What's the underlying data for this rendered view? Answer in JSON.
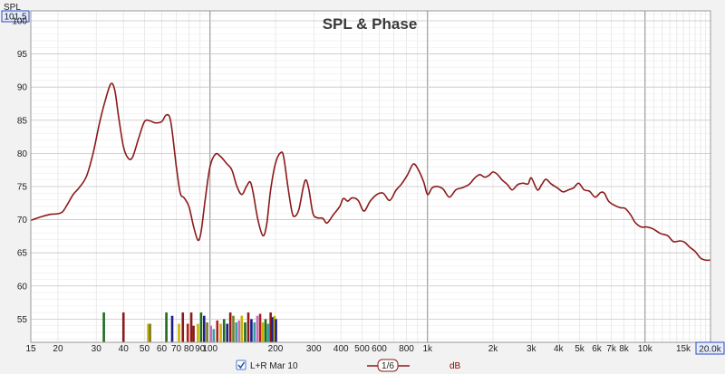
{
  "chart_data": {
    "type": "line",
    "title": "SPL & Phase",
    "ylabel": "SPL",
    "xscale": "log",
    "xlim": [
      15,
      20000
    ],
    "ylim": [
      51.5,
      101.5
    ],
    "y_max_label": "101.5",
    "x_max_label": "20.0k",
    "yticks": [
      "55",
      "60",
      "65",
      "70",
      "75",
      "80",
      "85",
      "90",
      "95",
      "100"
    ],
    "xticks": [
      {
        "v": 15,
        "label": "15"
      },
      {
        "v": 20,
        "label": "20"
      },
      {
        "v": 30,
        "label": "30"
      },
      {
        "v": 40,
        "label": "40"
      },
      {
        "v": 50,
        "label": "50"
      },
      {
        "v": 60,
        "label": "60"
      },
      {
        "v": 70,
        "label": "70"
      },
      {
        "v": 80,
        "label": "80"
      },
      {
        "v": 90,
        "label": "90"
      },
      {
        "v": 100,
        "label": "100"
      },
      {
        "v": 200,
        "label": "200"
      },
      {
        "v": 300,
        "label": "300"
      },
      {
        "v": 400,
        "label": "400"
      },
      {
        "v": 500,
        "label": "500"
      },
      {
        "v": 600,
        "label": "600"
      },
      {
        "v": 800,
        "label": "800"
      },
      {
        "v": 1000,
        "label": "1k"
      },
      {
        "v": 2000,
        "label": "2k"
      },
      {
        "v": 3000,
        "label": "3k"
      },
      {
        "v": 4000,
        "label": "4k"
      },
      {
        "v": 5000,
        "label": "5k"
      },
      {
        "v": 6000,
        "label": "6k"
      },
      {
        "v": 7000,
        "label": "7k"
      },
      {
        "v": 8000,
        "label": "8k"
      },
      {
        "v": 10000,
        "label": "10k"
      },
      {
        "v": 15000,
        "label": "15k"
      }
    ],
    "grid": true,
    "series": [
      {
        "name": "L+R Mar 10",
        "color": "#8b1a1a",
        "points": [
          [
            15,
            69.9
          ],
          [
            17,
            70.5
          ],
          [
            18.5,
            70.8
          ],
          [
            20,
            70.9
          ],
          [
            21,
            71.2
          ],
          [
            22,
            72.2
          ],
          [
            23.5,
            73.8
          ],
          [
            25,
            74.8
          ],
          [
            27,
            76.5
          ],
          [
            29,
            80.0
          ],
          [
            31,
            84.5
          ],
          [
            33,
            88.0
          ],
          [
            35,
            90.5
          ],
          [
            36.5,
            89.5
          ],
          [
            38,
            85.5
          ],
          [
            40,
            81.0
          ],
          [
            42,
            79.3
          ],
          [
            44,
            79.4
          ],
          [
            47,
            82.3
          ],
          [
            50,
            84.8
          ],
          [
            53,
            84.9
          ],
          [
            56,
            84.6
          ],
          [
            60,
            84.8
          ],
          [
            63,
            85.8
          ],
          [
            66,
            84.8
          ],
          [
            70,
            78.0
          ],
          [
            73,
            74.0
          ],
          [
            76,
            73.3
          ],
          [
            80,
            72.0
          ],
          [
            84,
            69.0
          ],
          [
            88,
            66.9
          ],
          [
            91,
            68.2
          ],
          [
            95,
            73.0
          ],
          [
            100,
            78.0
          ],
          [
            106,
            79.9
          ],
          [
            112,
            79.5
          ],
          [
            119,
            78.5
          ],
          [
            126,
            77.5
          ],
          [
            133,
            75.0
          ],
          [
            140,
            73.8
          ],
          [
            147,
            75.0
          ],
          [
            153,
            75.7
          ],
          [
            158,
            74.0
          ],
          [
            166,
            70.0
          ],
          [
            175,
            67.6
          ],
          [
            182,
            69.2
          ],
          [
            190,
            74.5
          ],
          [
            200,
            78.5
          ],
          [
            211,
            80.1
          ],
          [
            218,
            79.5
          ],
          [
            228,
            75.0
          ],
          [
            238,
            71.2
          ],
          [
            245,
            70.5
          ],
          [
            256,
            71.5
          ],
          [
            268,
            74.8
          ],
          [
            276,
            76.0
          ],
          [
            285,
            74.5
          ],
          [
            297,
            71.0
          ],
          [
            310,
            70.3
          ],
          [
            330,
            70.2
          ],
          [
            345,
            69.5
          ],
          [
            370,
            70.8
          ],
          [
            395,
            72.0
          ],
          [
            410,
            73.2
          ],
          [
            430,
            72.8
          ],
          [
            450,
            73.3
          ],
          [
            480,
            72.9
          ],
          [
            510,
            71.3
          ],
          [
            545,
            72.8
          ],
          [
            585,
            73.8
          ],
          [
            625,
            74.0
          ],
          [
            670,
            72.9
          ],
          [
            715,
            74.4
          ],
          [
            760,
            75.4
          ],
          [
            810,
            76.8
          ],
          [
            860,
            78.4
          ],
          [
            905,
            77.6
          ],
          [
            960,
            75.7
          ],
          [
            1000,
            73.8
          ],
          [
            1050,
            74.8
          ],
          [
            1110,
            75.0
          ],
          [
            1180,
            74.6
          ],
          [
            1260,
            73.4
          ],
          [
            1350,
            74.5
          ],
          [
            1440,
            74.8
          ],
          [
            1550,
            75.3
          ],
          [
            1650,
            76.3
          ],
          [
            1740,
            76.8
          ],
          [
            1830,
            76.4
          ],
          [
            1920,
            76.7
          ],
          [
            2000,
            77.2
          ],
          [
            2100,
            76.8
          ],
          [
            2200,
            76.0
          ],
          [
            2330,
            75.3
          ],
          [
            2450,
            74.5
          ],
          [
            2600,
            75.3
          ],
          [
            2750,
            75.5
          ],
          [
            2900,
            75.4
          ],
          [
            3000,
            76.3
          ],
          [
            3200,
            74.5
          ],
          [
            3350,
            75.3
          ],
          [
            3500,
            76.1
          ],
          [
            3700,
            75.4
          ],
          [
            3950,
            74.8
          ],
          [
            4200,
            74.2
          ],
          [
            4450,
            74.5
          ],
          [
            4700,
            74.8
          ],
          [
            4950,
            75.5
          ],
          [
            5250,
            74.5
          ],
          [
            5550,
            74.3
          ],
          [
            5900,
            73.4
          ],
          [
            6250,
            74.1
          ],
          [
            6500,
            74.0
          ],
          [
            6800,
            72.8
          ],
          [
            7200,
            72.2
          ],
          [
            7700,
            71.8
          ],
          [
            8100,
            71.7
          ],
          [
            8600,
            70.7
          ],
          [
            9000,
            69.6
          ],
          [
            9600,
            68.9
          ],
          [
            10200,
            68.9
          ],
          [
            10900,
            68.6
          ],
          [
            11800,
            67.9
          ],
          [
            12700,
            67.6
          ],
          [
            13500,
            66.7
          ],
          [
            14500,
            66.8
          ],
          [
            15200,
            66.6
          ],
          [
            16000,
            65.9
          ],
          [
            17000,
            65.2
          ],
          [
            18000,
            64.2
          ],
          [
            19000,
            63.9
          ],
          [
            20000,
            63.9
          ]
        ]
      }
    ],
    "bars": [
      {
        "f": 32.5,
        "v": 56.0,
        "c": "#1e6b1e"
      },
      {
        "f": 40,
        "v": 56.0,
        "c": "#8b1a1a"
      },
      {
        "f": 52,
        "v": 54.3,
        "c": "#c8b400"
      },
      {
        "f": 53,
        "v": 54.3,
        "c": "#7a7a22"
      },
      {
        "f": 63,
        "v": 56.0,
        "c": "#1e6b1e"
      },
      {
        "f": 67,
        "v": 55.5,
        "c": "#1e1e8b"
      },
      {
        "f": 72,
        "v": 54.3,
        "c": "#c8b400"
      },
      {
        "f": 75,
        "v": 56.0,
        "c": "#8b1a1a"
      },
      {
        "f": 79,
        "v": 54.3,
        "c": "#b02020"
      },
      {
        "f": 82,
        "v": 56.0,
        "c": "#8b1a1a"
      },
      {
        "f": 84,
        "v": 54.0,
        "c": "#8b1a1a"
      },
      {
        "f": 88,
        "v": 54.3,
        "c": "#c8b400"
      },
      {
        "f": 91,
        "v": 56.0,
        "c": "#1e6b1e"
      },
      {
        "f": 94,
        "v": 55.5,
        "c": "#1e1e8b"
      },
      {
        "f": 97,
        "v": 54.5,
        "c": "#7a7a22"
      },
      {
        "f": 101,
        "v": 54.0,
        "c": "#c070c0"
      },
      {
        "f": 104,
        "v": 53.5,
        "c": "#3aa0a0"
      },
      {
        "f": 108,
        "v": 54.8,
        "c": "#b02020"
      },
      {
        "f": 112,
        "v": 54.3,
        "c": "#c8b400"
      },
      {
        "f": 116,
        "v": 55.0,
        "c": "#1e6b1e"
      },
      {
        "f": 120,
        "v": 54.3,
        "c": "#1e1e8b"
      },
      {
        "f": 124,
        "v": 56.0,
        "c": "#8b1a1a"
      },
      {
        "f": 128,
        "v": 55.5,
        "c": "#7a7a22"
      },
      {
        "f": 132,
        "v": 54.5,
        "c": "#3aa0a0"
      },
      {
        "f": 136,
        "v": 54.8,
        "c": "#c070c0"
      },
      {
        "f": 140,
        "v": 55.5,
        "c": "#c8b400"
      },
      {
        "f": 145,
        "v": 54.5,
        "c": "#1e6b1e"
      },
      {
        "f": 150,
        "v": 56.0,
        "c": "#8b1a1a"
      },
      {
        "f": 155,
        "v": 55.0,
        "c": "#1e1e8b"
      },
      {
        "f": 160,
        "v": 54.5,
        "c": "#3aa0a0"
      },
      {
        "f": 165,
        "v": 55.5,
        "c": "#c070c0"
      },
      {
        "f": 170,
        "v": 55.8,
        "c": "#b02020"
      },
      {
        "f": 175,
        "v": 54.5,
        "c": "#c8b400"
      },
      {
        "f": 180,
        "v": 55.0,
        "c": "#1e6b1e"
      },
      {
        "f": 185,
        "v": 54.3,
        "c": "#3aa0a0"
      },
      {
        "f": 190,
        "v": 56.0,
        "c": "#8b1a1a"
      },
      {
        "f": 194,
        "v": 55.3,
        "c": "#1e1e8b"
      },
      {
        "f": 198,
        "v": 55.5,
        "c": "#c8b400"
      },
      {
        "f": 201,
        "v": 55.0,
        "c": "#1e1e8b"
      }
    ]
  },
  "legend": {
    "checked": true,
    "series_label": "L+R Mar 10",
    "smoothing_label": "1/6",
    "unit_label": "dB"
  }
}
